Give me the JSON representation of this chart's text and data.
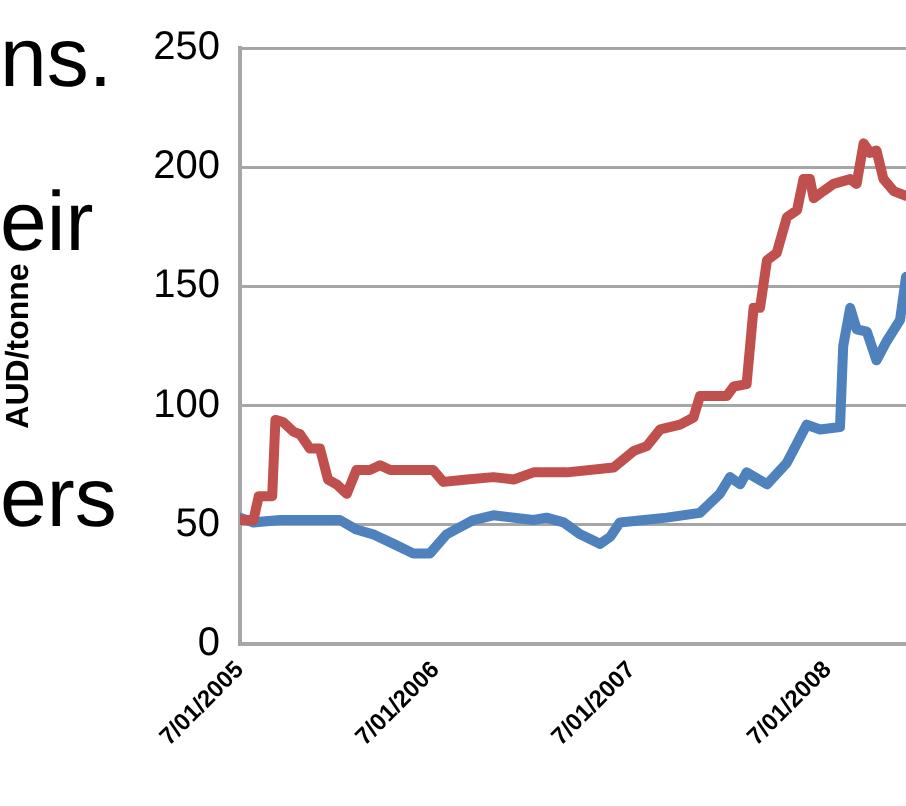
{
  "chart_data": {
    "type": "line",
    "ylabel": "AUD/tonne",
    "annotations": [
      "ns.",
      "eir",
      "ers"
    ],
    "xlim": [
      "2005-01-07",
      "2008-06-01"
    ],
    "xticks": [
      {
        "value": "2005-01-07",
        "label": "7/01/2005"
      },
      {
        "value": "2006-01-07",
        "label": "7/01/2006"
      },
      {
        "value": "2007-01-07",
        "label": "7/01/2007"
      },
      {
        "value": "2008-01-07",
        "label": "7/01/2008"
      }
    ],
    "ylim": [
      0,
      250
    ],
    "yticks": [
      0,
      50,
      100,
      150,
      200,
      250
    ],
    "grid": "y",
    "legend": false,
    "marker": "none",
    "line_style": "solid",
    "series": [
      {
        "color": "#c0504d",
        "x": [
          "2005-01-07",
          "2005-02-01",
          "2005-02-11",
          "2005-03-08",
          "2005-03-14",
          "2005-03-29",
          "2005-04-17",
          "2005-04-29",
          "2005-05-17",
          "2005-06-05",
          "2005-06-20",
          "2005-07-06",
          "2005-07-25",
          "2005-08-12",
          "2005-09-06",
          "2005-09-25",
          "2005-10-14",
          "2006-01-02",
          "2006-01-21",
          "2006-03-06",
          "2006-04-24",
          "2006-06-01",
          "2006-07-08",
          "2006-09-08",
          "2006-12-04",
          "2007-01-11",
          "2007-02-04",
          "2007-03-01",
          "2007-04-07",
          "2007-05-02",
          "2007-05-14",
          "2007-07-03",
          "2007-07-16",
          "2007-08-09",
          "2007-08-22",
          "2007-09-03",
          "2007-09-16",
          "2007-10-04",
          "2007-10-23",
          "2007-11-11",
          "2007-11-23",
          "2007-12-05",
          "2007-12-12",
          "2007-12-30",
          "2008-01-18",
          "2008-02-18",
          "2008-03-01",
          "2008-03-14",
          "2008-03-26",
          "2008-04-07",
          "2008-04-20",
          "2008-05-09",
          "2008-06-01"
        ],
        "values": [
          52,
          52,
          62,
          62,
          94,
          93,
          89,
          88,
          82,
          82,
          69,
          67,
          63,
          73,
          73,
          75,
          73,
          73,
          68,
          69,
          70,
          69,
          72,
          72,
          74,
          81,
          83,
          90,
          92,
          95,
          104,
          104,
          108,
          109,
          141,
          141,
          161,
          164,
          179,
          182,
          195,
          195,
          187,
          190,
          193,
          195,
          193,
          210,
          206,
          207,
          195,
          190,
          188
        ]
      },
      {
        "color": "#4f81bd",
        "x": [
          "2005-01-07",
          "2005-02-01",
          "2005-03-23",
          "2005-04-17",
          "2005-07-12",
          "2005-08-12",
          "2005-09-12",
          "2005-10-20",
          "2005-11-26",
          "2005-12-27",
          "2006-01-27",
          "2006-02-21",
          "2006-03-18",
          "2006-04-24",
          "2006-07-08",
          "2006-08-01",
          "2006-09-02",
          "2006-10-03",
          "2006-11-09",
          "2006-11-28",
          "2006-12-16",
          "2007-03-13",
          "2007-05-14",
          "2007-06-20",
          "2007-07-09",
          "2007-07-28",
          "2007-08-09",
          "2007-09-16",
          "2007-10-23",
          "2007-11-29",
          "2007-12-24",
          "2008-01-30",
          "2008-02-05",
          "2008-02-18",
          "2008-03-01",
          "2008-03-20",
          "2008-04-07",
          "2008-04-26",
          "2008-05-21",
          "2008-06-01"
        ],
        "values": [
          53,
          51,
          52,
          52,
          52,
          48,
          46,
          42,
          38,
          38,
          46,
          49,
          52,
          54,
          52,
          53,
          51,
          46,
          42,
          45,
          51,
          53,
          55,
          63,
          70,
          67,
          72,
          67,
          76,
          92,
          90,
          91,
          125,
          141,
          132,
          131,
          119,
          127,
          136,
          154
        ]
      }
    ]
  }
}
